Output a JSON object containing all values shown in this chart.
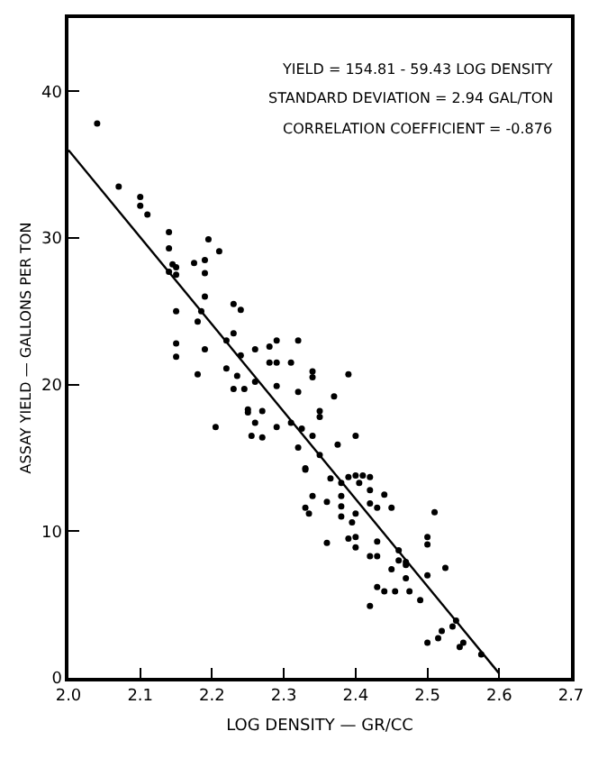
{
  "chart_data": {
    "type": "scatter",
    "xlabel": "LOG DENSITY — GR/CC",
    "ylabel": "ASSAY YIELD — GALLONS PER TON",
    "annotations": [
      "YIELD = 154.81 - 59.43 LOG DENSITY",
      "STANDARD DEVIATION = 2.94 GAL/TON",
      "CORRELATION COEFFICIENT = -0.876"
    ],
    "xlim": [
      2.0,
      2.7
    ],
    "xticks": [
      {
        "value": 2.0,
        "label": "2.0"
      },
      2.1,
      2.2,
      2.3,
      2.4,
      2.5,
      2.6,
      2.7
    ],
    "ylim": [
      0,
      45
    ],
    "yticks": [
      0,
      10,
      20,
      30,
      40
    ],
    "series": [
      {
        "marker": "circle",
        "color": "#000000",
        "x": [
          2.04,
          2.07,
          2.1,
          2.1,
          2.11,
          2.14,
          2.14,
          2.145,
          2.15,
          2.15,
          2.14,
          2.175,
          2.195,
          2.21,
          2.19,
          2.19,
          2.19,
          2.15,
          2.185,
          2.18,
          2.23,
          2.24,
          2.19,
          2.15,
          2.15,
          2.18,
          2.22,
          2.23,
          2.24,
          2.22,
          2.235,
          2.23,
          2.245,
          2.26,
          2.26,
          2.28,
          2.29,
          2.32,
          2.28,
          2.29,
          2.31,
          2.29,
          2.32,
          2.34,
          2.34,
          2.35,
          2.35,
          2.25,
          2.25,
          2.27,
          2.26,
          2.205,
          2.255,
          2.27,
          2.29,
          2.31,
          2.32,
          2.325,
          2.34,
          2.39,
          2.37,
          2.4,
          2.375,
          2.35,
          2.33,
          2.33,
          2.365,
          2.38,
          2.39,
          2.4,
          2.41,
          2.42,
          2.42,
          2.44,
          2.405,
          2.38,
          2.42,
          2.43,
          2.45,
          2.34,
          2.33,
          2.335,
          2.36,
          2.38,
          2.38,
          2.4,
          2.395,
          2.36,
          2.39,
          2.4,
          2.4,
          2.42,
          2.43,
          2.43,
          2.46,
          2.46,
          2.47,
          2.47,
          2.45,
          2.47,
          2.43,
          2.44,
          2.455,
          2.475,
          2.42,
          2.49,
          2.5,
          2.5,
          2.5,
          2.51,
          2.525,
          2.5,
          2.515,
          2.52,
          2.535,
          2.54,
          2.545,
          2.55,
          2.575
        ],
        "values": [
          37.8,
          33.5,
          32.8,
          32.2,
          31.6,
          30.4,
          29.3,
          28.2,
          28.0,
          27.5,
          27.7,
          28.3,
          29.9,
          29.1,
          28.5,
          27.6,
          26.0,
          25.0,
          25.0,
          24.3,
          25.5,
          25.1,
          22.4,
          22.8,
          21.9,
          20.7,
          23.0,
          23.5,
          22.0,
          21.1,
          20.6,
          19.7,
          19.7,
          20.2,
          22.4,
          22.6,
          23.0,
          23.0,
          21.5,
          21.5,
          21.5,
          19.9,
          19.5,
          20.5,
          20.9,
          18.2,
          17.8,
          18.1,
          18.3,
          18.2,
          17.4,
          17.1,
          16.5,
          16.4,
          17.1,
          17.4,
          15.7,
          17.0,
          16.5,
          20.7,
          19.2,
          16.5,
          15.9,
          15.2,
          14.2,
          14.3,
          13.6,
          13.3,
          13.7,
          13.8,
          13.8,
          13.7,
          12.8,
          12.5,
          13.3,
          12.4,
          11.9,
          11.6,
          11.6,
          12.4,
          11.6,
          11.2,
          12.0,
          11.7,
          11.0,
          11.2,
          10.6,
          9.2,
          9.5,
          9.6,
          8.9,
          8.3,
          8.3,
          9.3,
          8.7,
          8.0,
          7.7,
          7.9,
          7.4,
          6.8,
          6.2,
          5.9,
          5.9,
          5.9,
          4.9,
          5.3,
          9.6,
          9.1,
          7.0,
          11.3,
          7.5,
          2.4,
          2.7,
          3.2,
          3.5,
          3.9,
          2.1,
          2.4,
          1.6
        ]
      },
      {
        "type": "line",
        "marker": "none",
        "line_style": "solid",
        "color": "#000000",
        "x": [
          2.0,
          2.6
        ],
        "values": [
          36.0,
          0.3
        ]
      }
    ]
  }
}
